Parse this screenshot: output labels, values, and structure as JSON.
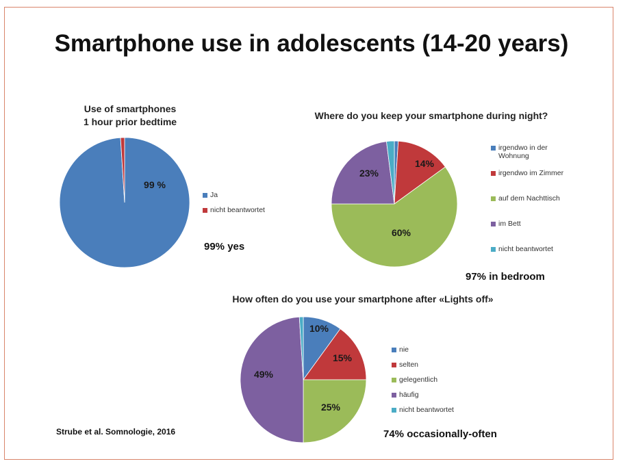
{
  "title": "Smartphone use in adolescents (14-20 years)",
  "source": "Strube et al. Somnologie, 2016",
  "colors": {
    "blue": "#4a7ebb",
    "red": "#c0393b",
    "green": "#9bbb59",
    "purple": "#7d60a0",
    "cyan": "#4bacc6",
    "frame": "#d9846a"
  },
  "chart_data": [
    {
      "type": "pie",
      "title_line1": "Use of smartphones",
      "title_line2": "1 hour prior bedtime",
      "categories": [
        "Ja",
        "nicht beantwortet"
      ],
      "values": [
        99,
        1
      ],
      "data_labels": [
        "99 %",
        ""
      ],
      "legend": "right",
      "summary": "99% yes"
    },
    {
      "type": "pie",
      "title": "Where do you keep your smartphone during night?",
      "categories": [
        "irgendwo in der Wohnung",
        "irgendwo im Zimmer",
        "auf dem Nachttisch",
        "im Bett",
        "nicht beantwortet"
      ],
      "values": [
        1,
        14,
        60,
        23,
        2
      ],
      "data_labels": [
        "",
        "14%",
        "60%",
        "23%",
        ""
      ],
      "legend": "right",
      "summary": "97% in bedroom"
    },
    {
      "type": "pie",
      "title": "How often do you use your smartphone after «Lights off»",
      "categories": [
        "nie",
        "selten",
        "gelegentlich",
        "häufig",
        "nicht beantwortet"
      ],
      "values": [
        10,
        15,
        25,
        49,
        1
      ],
      "data_labels": [
        "10%",
        "15%",
        "25%",
        "49%",
        ""
      ],
      "legend": "right",
      "summary": "74% occasionally-often"
    }
  ]
}
